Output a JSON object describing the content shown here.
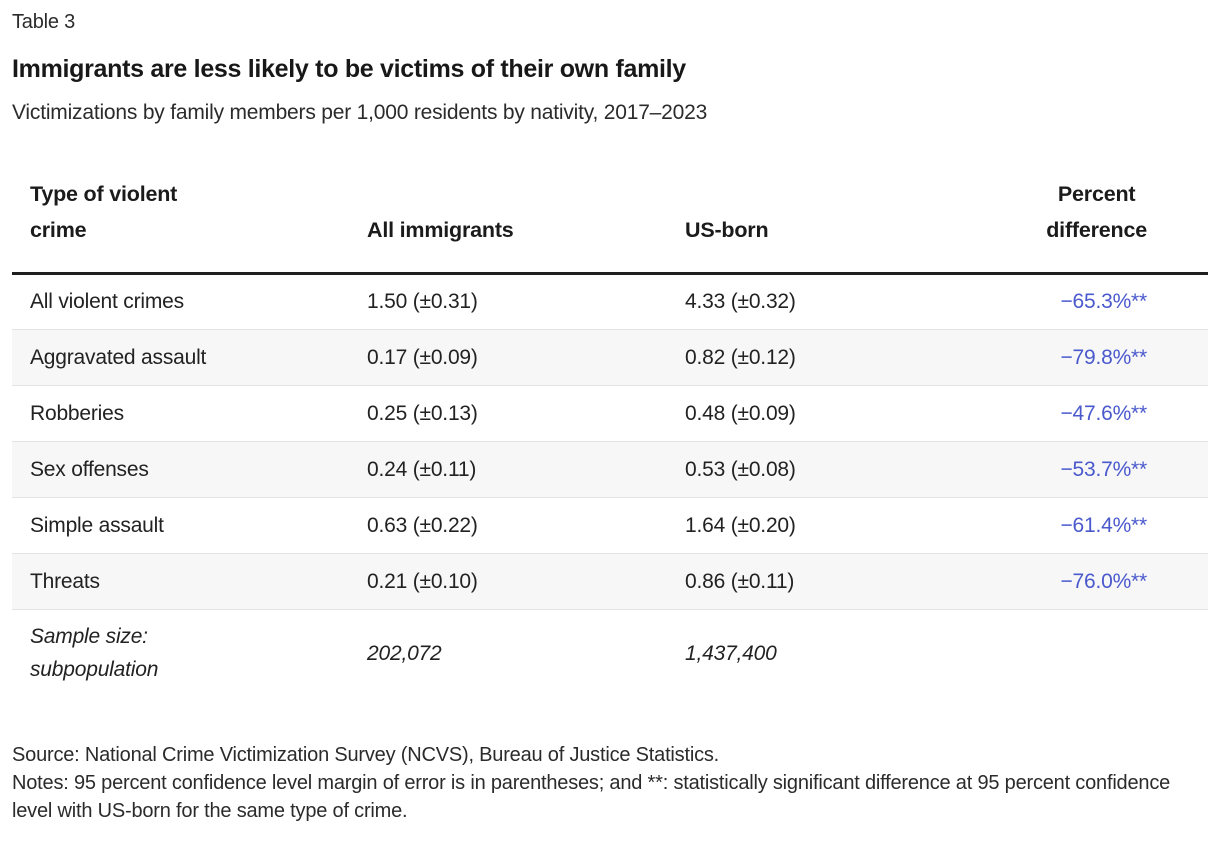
{
  "header": {
    "table_label": "Table 3",
    "title": "Immigrants are less likely to be victims of their own family",
    "subtitle": "Victimizations by family members per 1,000 residents by nativity, 2017–2023"
  },
  "chart_data": {
    "type": "table",
    "title": "Immigrants are less likely to be victims of their own family",
    "subtitle": "Victimizations by family members per 1,000 residents by nativity, 2017–2023",
    "columns": [
      {
        "key": "crime",
        "lines": [
          "Type of violent",
          "crime"
        ]
      },
      {
        "key": "all_immigrants",
        "lines": [
          "All immigrants"
        ]
      },
      {
        "key": "us_born",
        "lines": [
          "US-born"
        ]
      },
      {
        "key": "percent_difference",
        "lines": [
          "Percent",
          "difference"
        ]
      }
    ],
    "rows": [
      {
        "crime": "All violent crimes",
        "all_immigrants": "1.50 (±0.31)",
        "us_born": "4.33 (±0.32)",
        "percent_difference": "−65.3%**"
      },
      {
        "crime": "Aggravated assault",
        "all_immigrants": "0.17 (±0.09)",
        "us_born": "0.82 (±0.12)",
        "percent_difference": "−79.8%**"
      },
      {
        "crime": "Robberies",
        "all_immigrants": "0.25 (±0.13)",
        "us_born": "0.48 (±0.09)",
        "percent_difference": "−47.6%**"
      },
      {
        "crime": "Sex offenses",
        "all_immigrants": "0.24 (±0.11)",
        "us_born": "0.53 (±0.08)",
        "percent_difference": "−53.7%**"
      },
      {
        "crime": "Simple assault",
        "all_immigrants": "0.63 (±0.22)",
        "us_born": "1.64 (±0.20)",
        "percent_difference": "−61.4%**"
      },
      {
        "crime": "Threats",
        "all_immigrants": "0.21 (±0.10)",
        "us_born": "0.86 (±0.11)",
        "percent_difference": "−76.0%**"
      }
    ],
    "sample_row": {
      "label_lines": [
        "Sample size:",
        "subpopulation"
      ],
      "all_immigrants": "202,072",
      "us_born": "1,437,400",
      "percent_difference": ""
    },
    "numeric_values": {
      "all_immigrants_rate": [
        1.5,
        0.17,
        0.25,
        0.24,
        0.63,
        0.21
      ],
      "all_immigrants_moe": [
        0.31,
        0.09,
        0.13,
        0.11,
        0.22,
        0.1
      ],
      "us_born_rate": [
        4.33,
        0.82,
        0.48,
        0.53,
        1.64,
        0.86
      ],
      "us_born_moe": [
        0.32,
        0.12,
        0.09,
        0.08,
        0.2,
        0.11
      ],
      "percent_difference": [
        -65.3,
        -79.8,
        -47.6,
        -53.7,
        -61.4,
        -76.0
      ],
      "sample_size_all_immigrants": 202072,
      "sample_size_us_born": 1437400
    }
  },
  "footer": {
    "source": "Source: National Crime Victimization Survey (NCVS), Bureau of Justice Statistics.",
    "notes": "Notes: 95 percent confidence level margin of error is in parentheses; and **: statistically significant difference at 95 percent confidence level with US-born for the same type of crime."
  },
  "colors": {
    "accent_blue": "#4a59cc",
    "row_alt_bg": "#f7f7f8",
    "header_rule": "#1f1f1f",
    "row_divider": "#e3e3e4",
    "text": "#212121",
    "background": "#ffffff"
  }
}
